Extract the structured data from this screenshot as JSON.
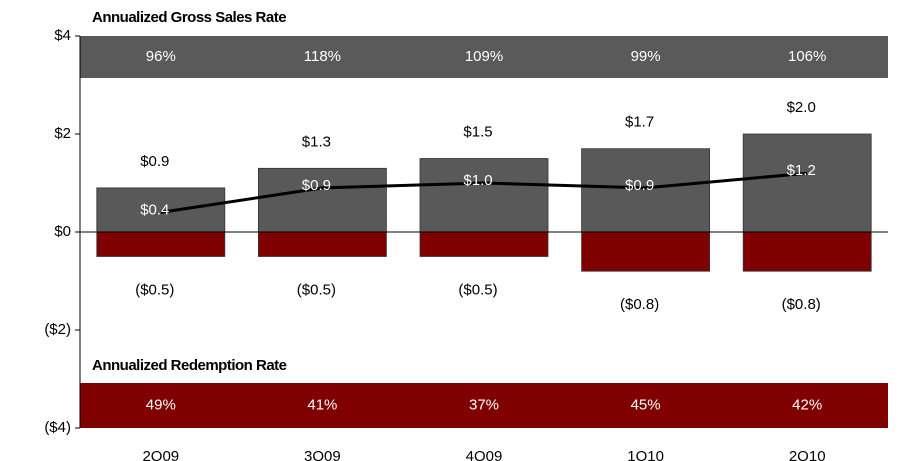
{
  "chart_data": {
    "type": "bar",
    "categories": [
      "2Q09",
      "3Q09",
      "4Q09",
      "1Q10",
      "2Q10"
    ],
    "series": [
      {
        "type": "bar",
        "color": "#595959",
        "values": [
          0.9,
          1.3,
          1.5,
          1.7,
          2.0
        ],
        "value_labels": [
          "$0.9",
          "$1.3",
          "$1.5",
          "$1.7",
          "$2.0"
        ]
      },
      {
        "type": "bar",
        "color": "#800000",
        "values": [
          -0.5,
          -0.5,
          -0.5,
          -0.8,
          -0.8
        ],
        "value_labels": [
          "($0.5)",
          "($0.5)",
          "($0.5)",
          "($0.8)",
          "($0.8)"
        ]
      },
      {
        "type": "line",
        "color": "#000000",
        "values": [
          0.4,
          0.9,
          1.0,
          0.9,
          1.2
        ],
        "value_labels": [
          "$0.4",
          "$0.9",
          "$1.0",
          "$0.9",
          "$1.2"
        ]
      }
    ],
    "bands": [
      {
        "title": "Annualized Gross Sales Rate",
        "color": "#5a5a5a",
        "position": "top",
        "labels": [
          "96%",
          "118%",
          "109%",
          "99%",
          "106%"
        ]
      },
      {
        "title": "Annualized Redemption Rate",
        "color": "#800000",
        "position": "bottom",
        "labels": [
          "49%",
          "41%",
          "37%",
          "45%",
          "42%"
        ]
      }
    ],
    "ylim": [
      -4,
      4
    ],
    "yticks": [
      {
        "value": -4,
        "label": "($4)"
      },
      {
        "value": -2,
        "label": "($2)"
      },
      {
        "value": 0,
        "label": "$0"
      },
      {
        "value": 2,
        "label": "$2"
      },
      {
        "value": 4,
        "label": "$4"
      }
    ]
  }
}
